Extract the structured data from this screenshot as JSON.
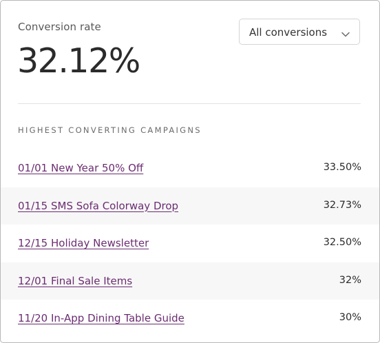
{
  "metric": {
    "label": "Conversion rate",
    "value": "32.12%"
  },
  "filter": {
    "selected": "All conversions",
    "icon": "chevron-down-icon"
  },
  "section": {
    "heading": "HIGHEST CONVERTING CAMPAIGNS"
  },
  "campaigns": [
    {
      "name": "01/01 New Year 50% Off",
      "rate": "33.50%"
    },
    {
      "name": "01/15 SMS Sofa Colorway Drop",
      "rate": "32.73%"
    },
    {
      "name": "12/15 Holiday Newsletter",
      "rate": "32.50%"
    },
    {
      "name": "12/01 Final Sale Items",
      "rate": "32%"
    },
    {
      "name": "11/20 In-App Dining Table Guide",
      "rate": "30%"
    }
  ],
  "colors": {
    "link": "#6b2c72",
    "value_text": "#2b2b2b",
    "row_alt_bg": "#f7f7f7"
  }
}
